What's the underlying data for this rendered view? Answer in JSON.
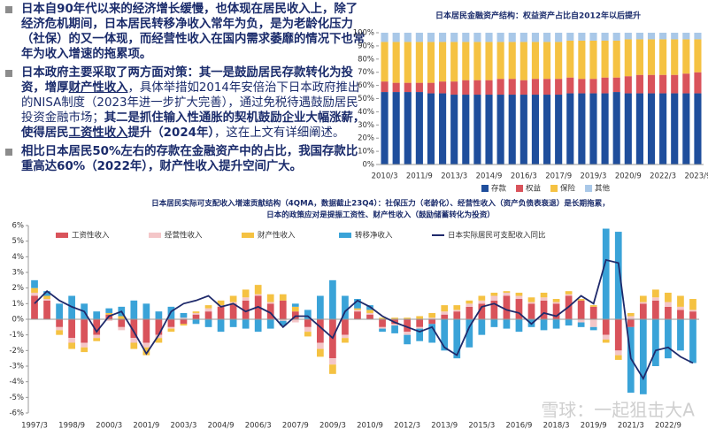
{
  "text_panel": {
    "paragraphs": [
      [
        "日本自90年代以来的经济增长缓慢，也体现在居民收入上，除了经济危机期间，日本居民转移净收入常年为负，是为老龄化压力（社保）的又一体现，而经营性收入在国内需求萎靡的情况下也常年为收入增速的拖累项。"
      ],
      [
        "日本政府主要采取了两方面对策：其一是鼓励居民存款转化为投资，增厚",
        "财产性收入",
        "，具体举措如2014年安倍治下日本政府推出的NISA制度（2023年进一步扩大完善），通过免税待遇鼓励居民投资金融市场；",
        "其二是抓住输入性通胀的契机鼓励企业大幅涨薪，使得居民",
        "工资性收入",
        "提升（2024年）",
        "，这在上文有详细阐述。"
      ],
      [
        "相比日本居民50%左右的存款在金融资产中的占比，我国存款比重高达60%（2022年），财产性收入提升空间广大。"
      ]
    ]
  },
  "chart_data": [
    {
      "type": "stacked_bar",
      "title": "日本居民金融资产结构：权益资产占比自2012年以后提升",
      "categories": [
        "2010/3",
        null,
        null,
        "2011/9",
        null,
        null,
        "2013/3",
        null,
        null,
        "2014/9",
        null,
        null,
        "2016/3",
        null,
        null,
        "2017/9",
        null,
        null,
        "2019/3",
        null,
        null,
        "2020/9",
        null,
        null,
        "2022/3",
        null,
        null,
        "2023/9"
      ],
      "series": [
        {
          "name": "存款",
          "color": "#1f4e9c",
          "values": [
            55,
            55,
            55,
            55,
            54,
            54,
            53,
            53,
            53,
            53,
            53,
            53,
            53,
            53,
            53,
            53,
            54,
            54,
            54,
            54,
            55,
            54,
            54,
            54,
            54,
            54,
            54,
            54
          ]
        },
        {
          "name": "权益",
          "color": "#d9535b",
          "values": [
            8,
            7,
            7,
            7,
            8,
            9,
            10,
            11,
            11,
            11,
            12,
            12,
            11,
            12,
            12,
            12,
            12,
            11,
            11,
            12,
            11,
            13,
            14,
            14,
            14,
            14,
            15,
            16
          ]
        },
        {
          "name": "保险",
          "color": "#f5c242",
          "values": [
            30,
            31,
            31,
            31,
            31,
            30,
            30,
            29,
            29,
            29,
            28,
            28,
            29,
            28,
            28,
            28,
            28,
            29,
            29,
            28,
            28,
            28,
            27,
            27,
            27,
            27,
            26,
            25
          ]
        },
        {
          "name": "其他",
          "color": "#a9c8e8",
          "values": [
            7,
            7,
            7,
            7,
            7,
            7,
            7,
            7,
            7,
            7,
            7,
            7,
            7,
            7,
            7,
            7,
            6,
            6,
            6,
            6,
            6,
            5,
            5,
            5,
            5,
            5,
            5,
            5
          ]
        }
      ],
      "ylim": [
        0,
        100
      ],
      "yticks": [
        {
          "value": 0,
          "label": "0%"
        },
        {
          "value": 10,
          "label": "10%"
        },
        {
          "value": 20,
          "label": "20%"
        },
        {
          "value": 30,
          "label": "30%"
        },
        {
          "value": 40,
          "label": "40%"
        },
        {
          "value": 50,
          "label": "50%"
        },
        {
          "value": 60,
          "label": "60%"
        },
        {
          "value": 70,
          "label": "70%"
        },
        {
          "value": 80,
          "label": "80%"
        },
        {
          "value": 90,
          "label": "90%"
        },
        {
          "value": 100,
          "label": "100%"
        }
      ],
      "legend": "bottom"
    },
    {
      "type": "bar_line",
      "title": [
        "日本居民实际可支配收入增速贡献结构（4QMA，数据截止23Q4）：社保压力（老龄化）、经营性收入（资产负债表衰退）是长期拖累，",
        "日本的政策应对是提振工资性、财产性收入（鼓励储蓄转化为投资）"
      ],
      "categories": [
        "1997/3",
        null,
        null,
        "1998/9",
        null,
        null,
        "2000/3",
        null,
        null,
        "2001/9",
        null,
        null,
        "2003/3",
        null,
        null,
        "2004/9",
        null,
        null,
        "2006/3",
        null,
        null,
        "2007/9",
        null,
        null,
        "2009/3",
        null,
        null,
        "2010/9",
        null,
        null,
        "2012/3",
        null,
        null,
        "2013/9",
        null,
        null,
        "2015/3",
        null,
        null,
        "2016/9",
        null,
        null,
        "2018/3",
        null,
        null,
        "2019/9",
        null,
        null,
        "2021/3",
        null,
        null,
        "2022/9",
        null,
        null
      ],
      "series": [
        {
          "name": "工资性收入",
          "color": "#d9535b",
          "kind": "bar",
          "values": [
            1.5,
            1.2,
            -0.5,
            -1.2,
            -1.5,
            -1.0,
            0.3,
            -0.5,
            -1.2,
            -1.5,
            -1.0,
            -0.5,
            -0.3,
            0.3,
            0.5,
            0.8,
            1.0,
            1.2,
            1.5,
            1.0,
            1.2,
            0.5,
            -0.5,
            -1.5,
            -2.5,
            -1.0,
            0.5,
            0.3,
            -0.5,
            -0.3,
            -0.8,
            -0.5,
            -0.3,
            0.3,
            0.5,
            0.8,
            1.0,
            1.2,
            1.5,
            1.3,
            1.0,
            1.2,
            1.0,
            1.5,
            1.2,
            0.8,
            -1.0,
            -2.0,
            -0.5,
            1.0,
            1.2,
            0.8,
            0.6,
            0.5
          ]
        },
        {
          "name": "经营性收入",
          "color": "#f4c6c8",
          "kind": "bar",
          "values": [
            0.2,
            0.1,
            -0.2,
            -0.3,
            -0.3,
            -0.2,
            -0.1,
            -0.2,
            -0.3,
            -0.3,
            -0.2,
            -0.1,
            0.1,
            0.1,
            0.2,
            0.1,
            0.1,
            0.2,
            0.1,
            0.1,
            -0.1,
            -0.2,
            -0.3,
            -0.4,
            -0.4,
            -0.2,
            0.1,
            0.1,
            -0.1,
            -0.1,
            -0.2,
            -0.1,
            0.1,
            0.2,
            0.1,
            0.2,
            0.2,
            0.3,
            0.2,
            0.2,
            0.1,
            0.2,
            0.1,
            0.1,
            -0.2,
            -0.5,
            -0.3,
            -0.3,
            0.2,
            0.1,
            0.2,
            0.3,
            0.2,
            0.1
          ]
        },
        {
          "name": "财产性收入",
          "color": "#f5c242",
          "kind": "bar",
          "values": [
            0.3,
            0.2,
            -0.3,
            -0.4,
            -0.3,
            -0.2,
            0.1,
            0.2,
            -0.4,
            -0.5,
            -0.3,
            -0.2,
            -0.1,
            0.1,
            0.2,
            0.3,
            0.4,
            0.5,
            0.6,
            0.5,
            0.4,
            0.3,
            -0.3,
            -0.5,
            -0.6,
            -0.3,
            0.1,
            0.2,
            0.1,
            0.1,
            0.1,
            0.2,
            0.3,
            0.4,
            0.3,
            0.2,
            0.3,
            0.2,
            0.1,
            0.2,
            0.3,
            0.3,
            0.2,
            0.2,
            0.1,
            0.1,
            -0.2,
            -0.3,
            0.2,
            0.4,
            0.5,
            0.6,
            0.7,
            0.7
          ]
        },
        {
          "name": "转移净收入",
          "color": "#3aa3d8",
          "kind": "bar",
          "values": [
            0.5,
            0.3,
            1.0,
            1.5,
            1.0,
            0.5,
            0.3,
            0.6,
            1.2,
            1.0,
            0.5,
            0.8,
            0.3,
            -0.3,
            -0.5,
            -0.8,
            -0.5,
            -0.6,
            -0.8,
            -0.6,
            -0.3,
            0.2,
            0.6,
            1.5,
            2.5,
            1.5,
            0.6,
            0.3,
            -0.2,
            -0.5,
            -0.6,
            -0.8,
            -1.2,
            -2.0,
            -2.5,
            -1.8,
            -1.0,
            -0.5,
            -0.6,
            -0.8,
            -0.5,
            -0.7,
            -0.6,
            -0.4,
            -0.3,
            -0.2,
            5.8,
            5.6,
            -4.2,
            -4.8,
            -3.0,
            -2.5,
            -2.0,
            -2.8
          ]
        },
        {
          "name": "日本实际居民可支配收入同比",
          "color": "#1f2a6b",
          "kind": "line",
          "values": [
            1.0,
            1.8,
            1.2,
            0.8,
            0.5,
            -0.8,
            0.2,
            0.5,
            -0.8,
            -2.2,
            -1.0,
            0.5,
            1.0,
            1.2,
            1.5,
            0.8,
            1.0,
            0.5,
            0.8,
            0.4,
            -0.5,
            0.2,
            0.2,
            -0.5,
            -1.2,
            0.5,
            1.2,
            0.8,
            0.2,
            -0.2,
            -0.5,
            -0.8,
            -0.5,
            -1.8,
            -2.3,
            -0.5,
            0.8,
            1.0,
            0.6,
            0.4,
            -0.3,
            0.4,
            0.2,
            0.8,
            1.5,
            1.0,
            3.8,
            3.6,
            -2.5,
            -3.8,
            -2.0,
            -1.8,
            -2.4,
            -2.8
          ]
        }
      ],
      "ylim": [
        -6,
        6
      ],
      "yticks": [
        {
          "value": -6,
          "label": "-6%"
        },
        {
          "value": -5,
          "label": "-5%"
        },
        {
          "value": -4,
          "label": "-4%"
        },
        {
          "value": -3,
          "label": "-3%"
        },
        {
          "value": -2,
          "label": "-2%"
        },
        {
          "value": -1,
          "label": "-1%"
        },
        {
          "value": 0,
          "label": "0%"
        },
        {
          "value": 1,
          "label": "1%"
        },
        {
          "value": 2,
          "label": "2%"
        },
        {
          "value": 3,
          "label": "3%"
        },
        {
          "value": 4,
          "label": "4%"
        },
        {
          "value": 5,
          "label": "5%"
        },
        {
          "value": 6,
          "label": "6%"
        }
      ],
      "legend": "top",
      "watermark": "雪球：一起狙击大A"
    }
  ]
}
